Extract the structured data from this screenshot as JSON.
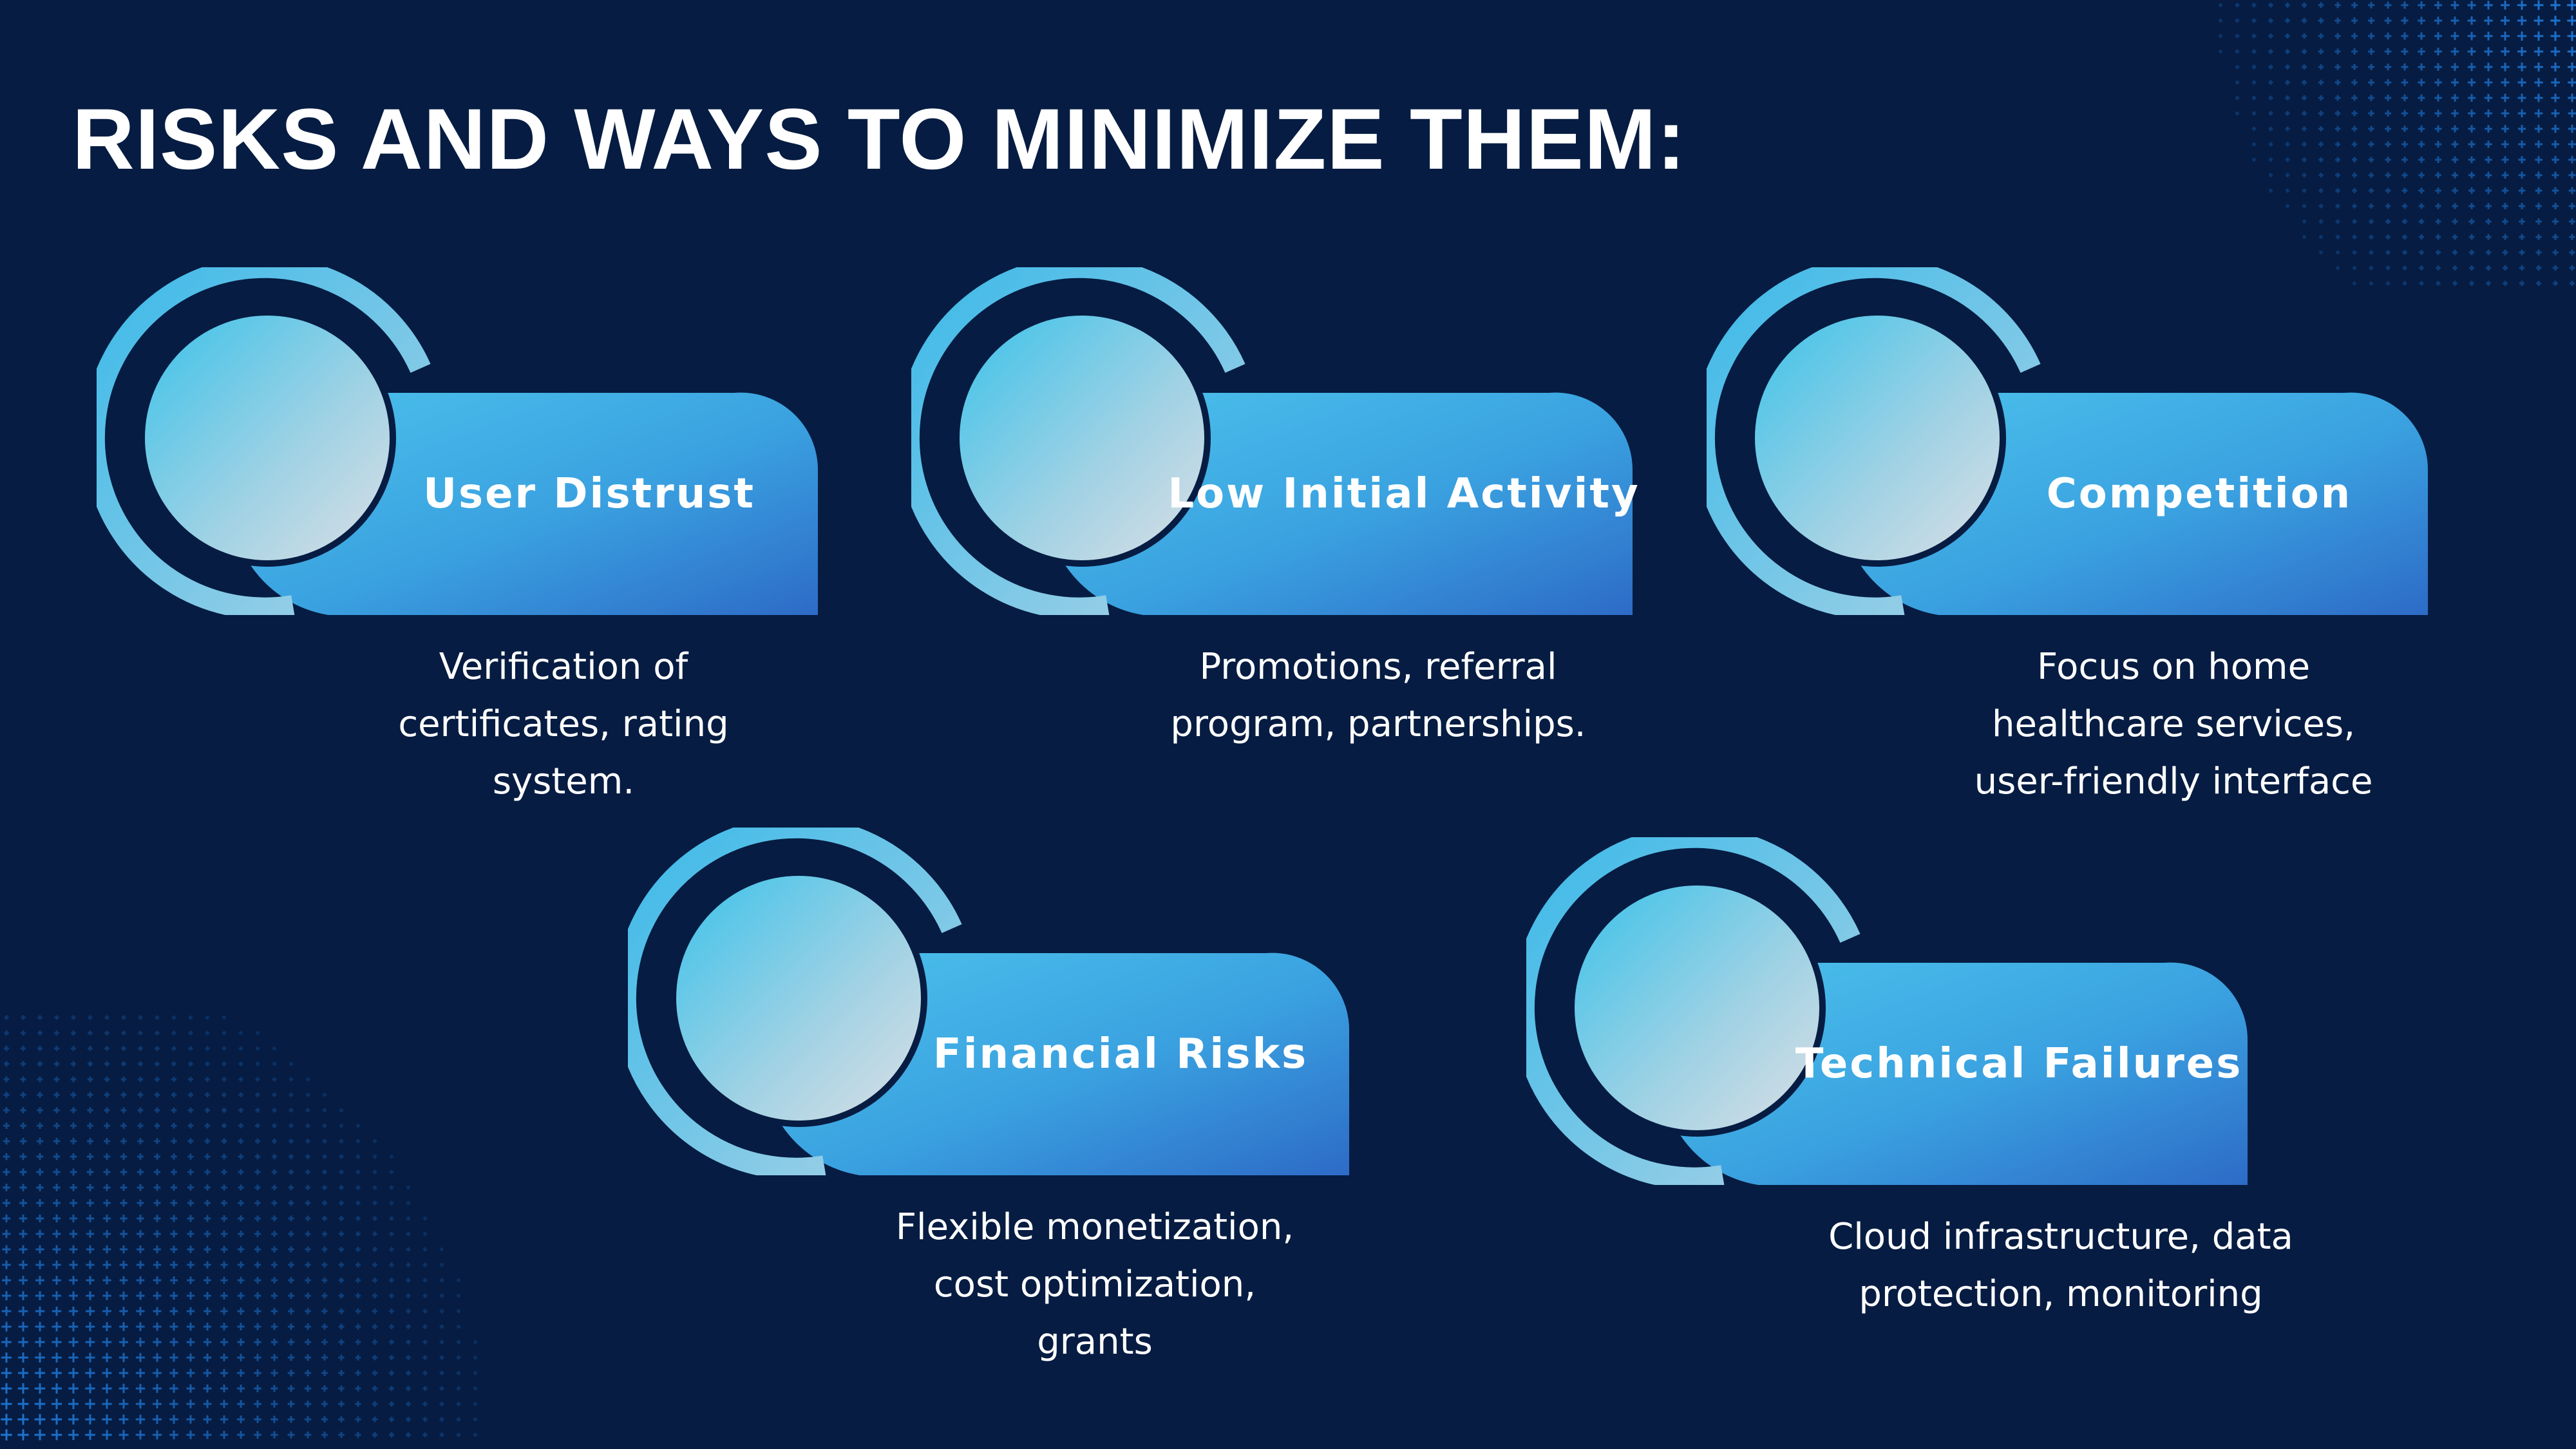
{
  "title": "RISKS AND WAYS TO MINIMIZE THEM:",
  "colors": {
    "background": "#061c42",
    "accent": "#3fb6e6",
    "pill_dark": "#2f6fc9",
    "circle_light": "#d2dfe8",
    "dots": "#1e78d8"
  },
  "risks": [
    {
      "name": "User Distrust",
      "solution": [
        "Verification of",
        "certificates, rating",
        "system."
      ]
    },
    {
      "name": "Low Initial Activity",
      "solution": [
        "Promotions, referral",
        "program, partnerships."
      ]
    },
    {
      "name": "Competition",
      "solution": [
        "Focus on home",
        "healthcare services,",
        "user-friendly interface"
      ]
    },
    {
      "name": "Financial Risks",
      "solution": [
        "Flexible monetization,",
        "cost optimization,",
        "grants"
      ]
    },
    {
      "name": "Technical Failures",
      "solution": [
        "Cloud infrastructure, data",
        "protection, monitoring"
      ]
    }
  ]
}
